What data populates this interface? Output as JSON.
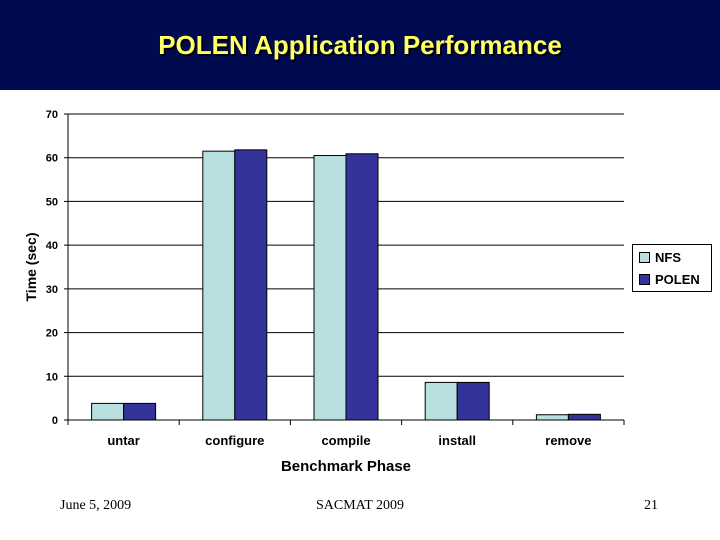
{
  "slide": {
    "title": "POLEN Application Performance",
    "footer_date": "June 5, 2009",
    "footer_conf": "SACMAT 2009",
    "page_number": "21"
  },
  "colors": {
    "header_bg": "#000b4f",
    "title": "#ffff66",
    "nfs": "#b8e0e0",
    "polen": "#333399"
  },
  "chart_data": {
    "type": "bar",
    "title": "",
    "xlabel": "Benchmark Phase",
    "ylabel": "Time (sec)",
    "ylim": [
      0,
      70
    ],
    "yticks": [
      0,
      10,
      20,
      30,
      40,
      50,
      60,
      70
    ],
    "grid": true,
    "legend_position": "right",
    "categories": [
      "untar",
      "configure",
      "compile",
      "install",
      "remove"
    ],
    "series": [
      {
        "name": "NFS",
        "values": [
          3.8,
          61.5,
          60.5,
          8.6,
          1.2
        ]
      },
      {
        "name": "POLEN",
        "values": [
          3.8,
          61.8,
          60.9,
          8.6,
          1.3
        ]
      }
    ]
  }
}
